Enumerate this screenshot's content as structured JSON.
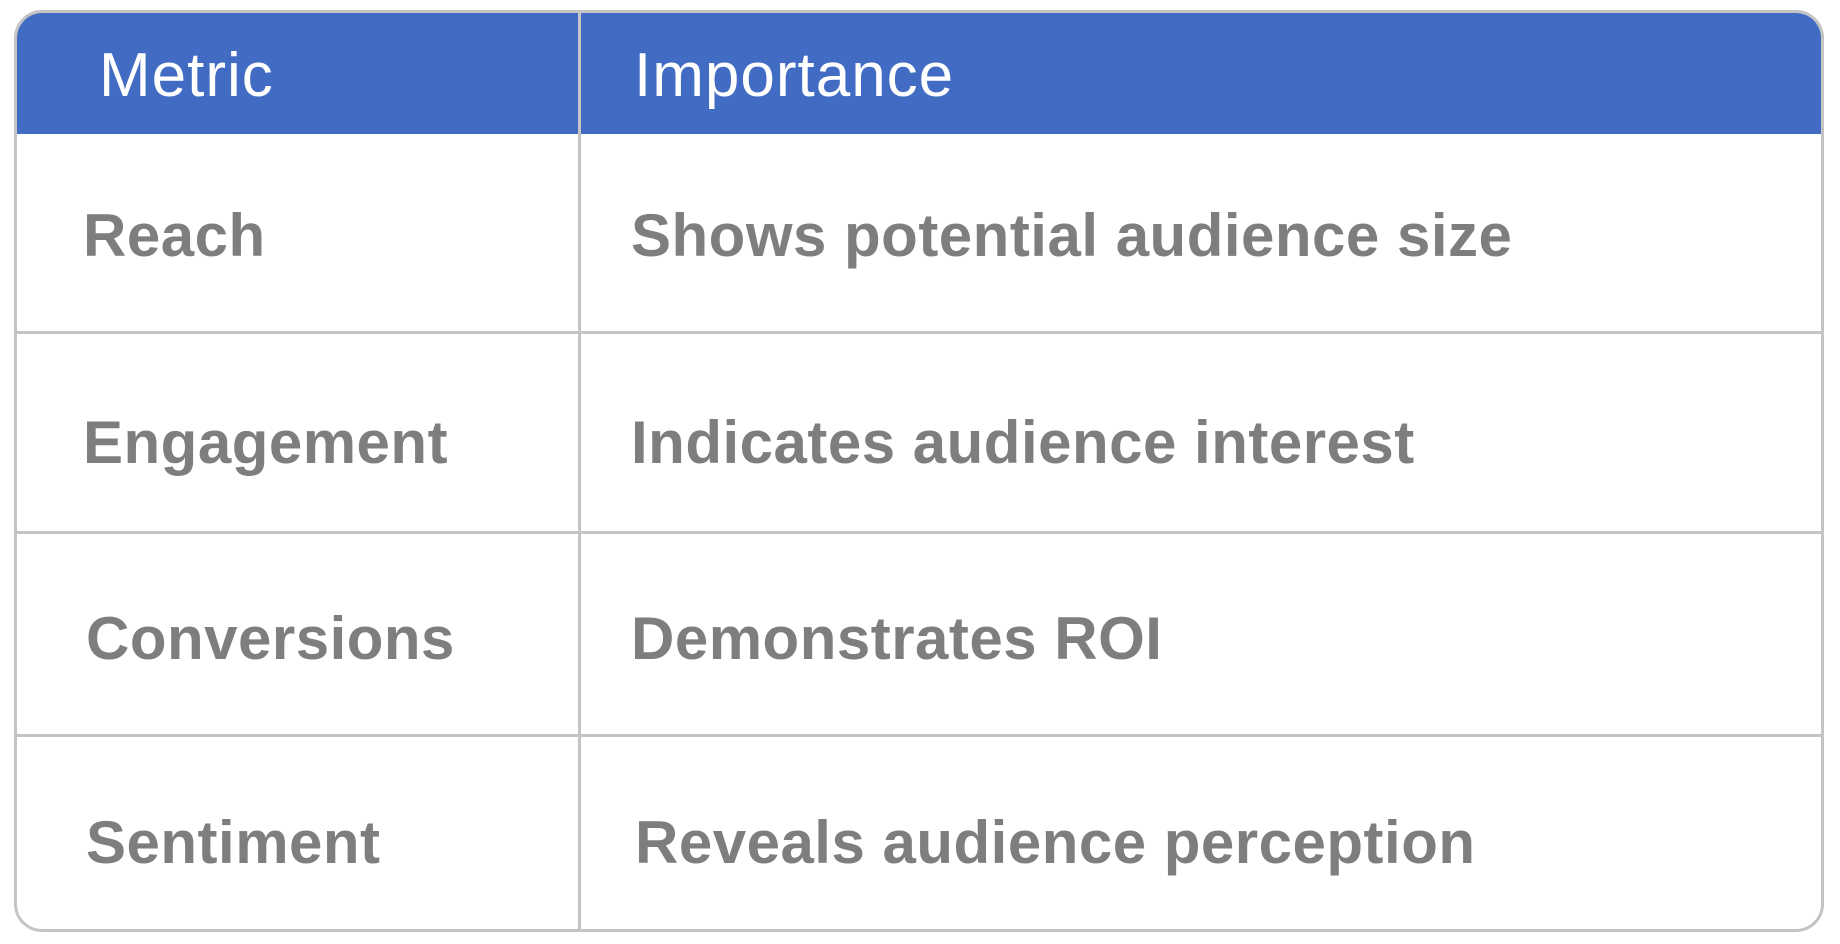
{
  "table": {
    "header": {
      "metric_label": "Metric",
      "importance_label": "Importance"
    },
    "rows": [
      {
        "metric": "Reach",
        "importance": "Shows potential audience size"
      },
      {
        "metric": "Engagement",
        "importance": "Indicates audience interest"
      },
      {
        "metric": "Conversions",
        "importance": "Demonstrates ROI"
      },
      {
        "metric": "Sentiment",
        "importance": "Reveals audience perception"
      }
    ]
  },
  "colors": {
    "header_background": "#426bc3",
    "header_text": "#ffffff",
    "body_text": "#7e7e7e",
    "border": "#c4c4c4"
  }
}
